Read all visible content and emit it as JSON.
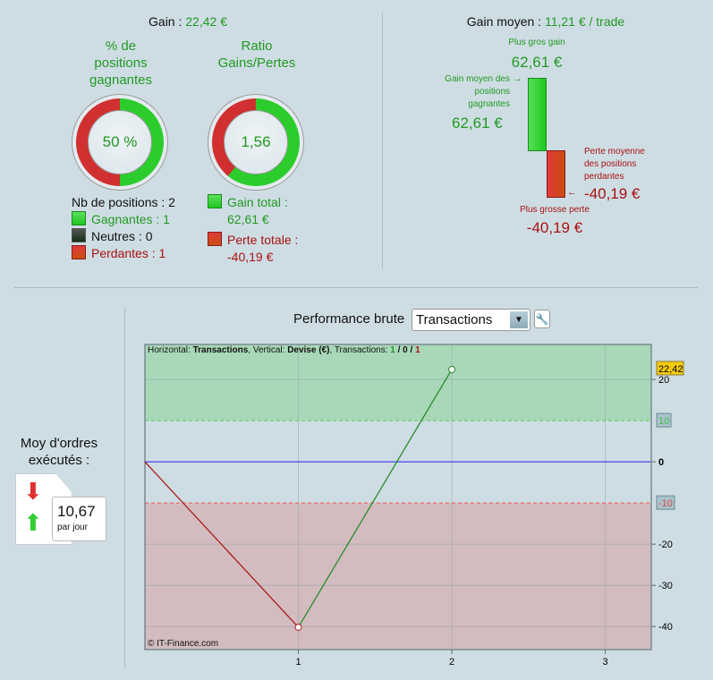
{
  "gain": {
    "label": "Gain :",
    "value": "22,42 €"
  },
  "pct": {
    "title": [
      "% de",
      "positions",
      "gagnantes"
    ],
    "value": "50 %",
    "win_fraction": 0.5
  },
  "ratio": {
    "title": [
      "Ratio",
      "Gains/Pertes"
    ],
    "value": "1,56",
    "win_fraction": 0.609
  },
  "positions": {
    "count_label": "Nb de positions : 2",
    "winners": "Gagnantes : 1",
    "neutral": "Neutres : 0",
    "losers": "Perdantes : 1"
  },
  "totals": {
    "gain_label": "Gain total :",
    "gain_value": "62,61 €",
    "loss_label": "Perte totale :",
    "loss_value": "-40,19 €"
  },
  "avg": {
    "label": "Gain moyen :",
    "value": "11,21 € / trade",
    "biggest_gain_label": "Plus gros gain",
    "biggest_gain": "62,61 €",
    "avg_win_label": [
      "Gain moyen des",
      "positions",
      "gagnantes"
    ],
    "avg_win": "62,61 €",
    "avg_loss_label": [
      "Perte moyenne",
      "des positions",
      "perdantes"
    ],
    "avg_loss": "-40,19 €",
    "biggest_loss_label": "Plus grosse perte",
    "biggest_loss": "-40,19 €"
  },
  "orders": {
    "title": [
      "Moy d'ordres",
      "exécutés :"
    ],
    "value": "10,67",
    "unit": "par jour"
  },
  "perf": {
    "label": "Performance brute",
    "select": "Transactions"
  },
  "chart_data": {
    "type": "line",
    "info": {
      "h_label": "Horizontal: ",
      "h_value": "Transactions",
      "v_label": ", Vertical: ",
      "v_value": "Devise (€)",
      "t_label": ", Transactions: ",
      "wins": "1",
      "sep1": " / ",
      "neutral": "0",
      "sep2": " / ",
      "losses": "1"
    },
    "x": [
      0,
      1,
      2
    ],
    "y": [
      0,
      -40.19,
      22.42
    ],
    "xlim": [
      0,
      3.3
    ],
    "ylim": [
      -45.6,
      28.5
    ],
    "xticks": [
      "1",
      "2",
      "3"
    ],
    "yticks": [
      "20",
      "0",
      "-20",
      "-30",
      "-40"
    ],
    "upper_threshold": "10",
    "lower_threshold": "-10",
    "last_value": "22,42",
    "watermark": "© IT-Finance.com",
    "colors": {
      "up": "#2a8a2a",
      "down": "#aa1a1a",
      "zero": "#2020ee"
    }
  }
}
